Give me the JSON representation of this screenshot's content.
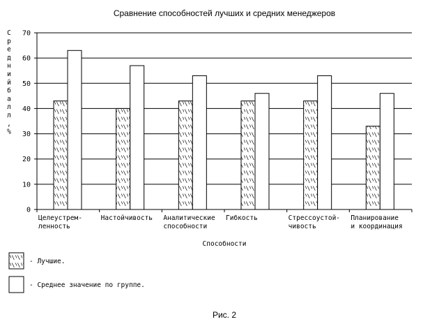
{
  "chart_data": {
    "type": "bar",
    "title": "Сравнение способностей лучших и средних менеджеров",
    "xlabel": "Способности",
    "ylabel": "Средний балл, %",
    "categories": [
      [
        "Целеустрем-",
        "ленность"
      ],
      [
        "Настойчивость"
      ],
      [
        "Аналитические",
        "способности"
      ],
      [
        "Гибкость"
      ],
      [
        "Стрессоустой-",
        "чивость"
      ],
      [
        "Планирование",
        "и координация"
      ]
    ],
    "series": [
      {
        "name": "- Лучшие.",
        "values": [
          43,
          40,
          43,
          43,
          43,
          33
        ],
        "pattern": "hatch"
      },
      {
        "name": "- Среднее значение по группе.",
        "values": [
          63,
          57,
          53,
          46,
          53,
          46
        ],
        "pattern": "plain"
      }
    ],
    "ylim": [
      0,
      70
    ],
    "yticks": [
      0,
      10,
      20,
      30,
      40,
      50,
      60,
      70
    ],
    "grid": true,
    "legend_position": "bottom-left"
  },
  "figure_caption": "Рис. 2"
}
